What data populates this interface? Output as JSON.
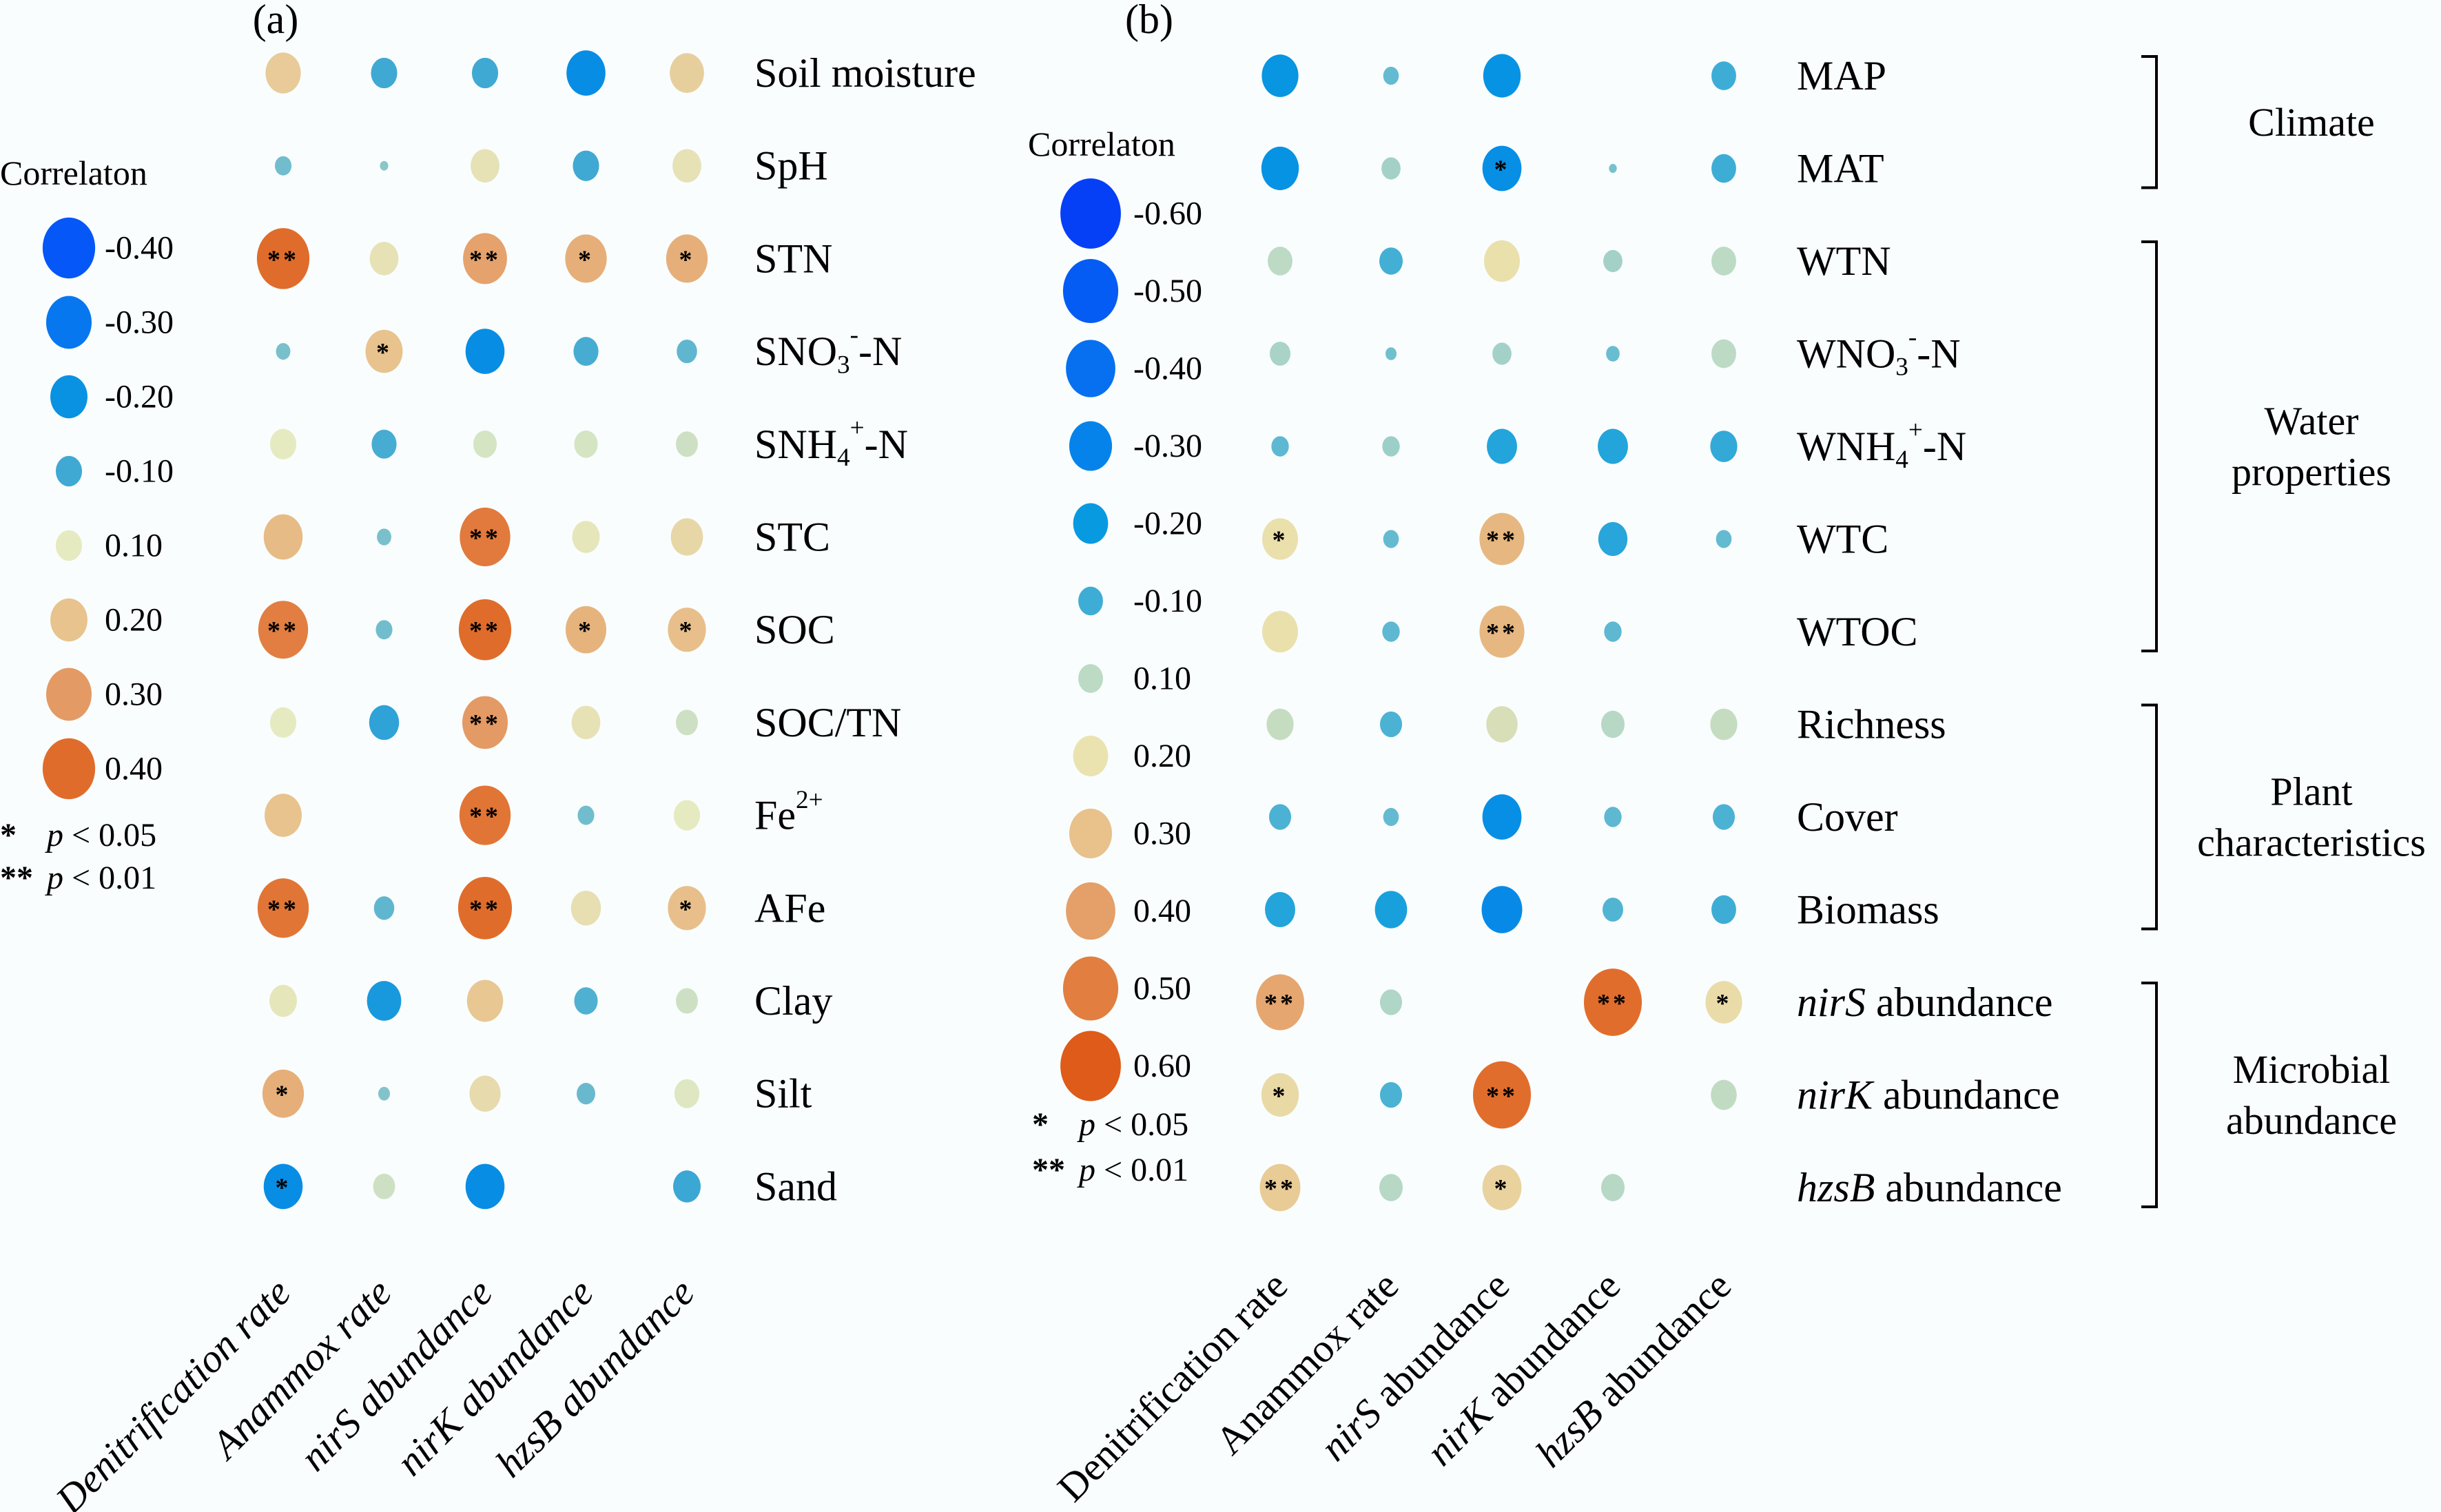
{
  "chart_data": [
    {
      "type": "bubble-correlation-matrix",
      "panel_label": "(a)",
      "legend": {
        "title": "Correlaton",
        "entries": [
          "-0.40",
          "-0.30",
          "-0.20",
          "-0.10",
          "0.10",
          "0.20",
          "0.30",
          "0.40"
        ],
        "values": [
          -0.4,
          -0.3,
          -0.2,
          -0.1,
          0.1,
          0.2,
          0.3,
          0.4
        ],
        "colors": [
          "#0557f7",
          "#0677ef",
          "#0992e1",
          "#3fa9d3",
          "#e6eac0",
          "#e8c38e",
          "#e49a64",
          "#e06c2b"
        ],
        "significance": [
          {
            "mark": "*",
            "p_symbol": "p",
            "text": "< 0.05"
          },
          {
            "mark": "**",
            "p_symbol": "p",
            "text": "< 0.01"
          }
        ]
      },
      "max_abs": 0.42,
      "columns": [
        {
          "label": "Denitrification rate",
          "italic_part": "",
          "rest": "Denitrification rate"
        },
        {
          "label": "Anammox rate",
          "italic_part": "",
          "rest": "Anammox rate"
        },
        {
          "label": "nirS abundance",
          "italic_part": "",
          "rest": "nirS abundance"
        },
        {
          "label": "nirK abundance",
          "italic_part": "",
          "rest": "nirK abundance"
        },
        {
          "label": "hzsB abundance",
          "italic_part": "",
          "rest": "hzsB abundance"
        }
      ],
      "columns_all_italic": true,
      "rows": [
        {
          "label": "Soil moisture",
          "values": [
            0.18,
            -0.1,
            -0.1,
            -0.22,
            0.17
          ],
          "sig": [
            "",
            "",
            "",
            "",
            ""
          ]
        },
        {
          "label": "SpH",
          "values": [
            -0.04,
            -0.01,
            0.12,
            -0.1,
            0.12
          ],
          "sig": [
            "",
            "",
            "",
            "",
            ""
          ]
        },
        {
          "label": "STN",
          "values": [
            0.4,
            0.12,
            0.28,
            0.25,
            0.25
          ],
          "sig": [
            "**",
            "",
            "**",
            "*",
            "*"
          ]
        },
        {
          "label": "SNO",
          "sub": "3",
          "sup": "-",
          "suffix": "-N",
          "values": [
            -0.03,
            0.2,
            -0.22,
            -0.09,
            -0.06
          ],
          "sig": [
            "",
            "*",
            "",
            "",
            ""
          ]
        },
        {
          "label": "SNH",
          "sub": "4",
          "sup": "+",
          "suffix": "-N",
          "values": [
            0.1,
            -0.09,
            0.08,
            0.08,
            0.07
          ],
          "sig": [
            "",
            "",
            "",
            "",
            ""
          ]
        },
        {
          "label": "STC",
          "values": [
            0.22,
            -0.03,
            0.37,
            0.11,
            0.15
          ],
          "sig": [
            "",
            "",
            "**",
            "",
            ""
          ]
        },
        {
          "label": "SOC",
          "values": [
            0.36,
            -0.04,
            0.4,
            0.24,
            0.21
          ],
          "sig": [
            "**",
            "",
            "**",
            "*",
            "*"
          ]
        },
        {
          "label": "SOC/TN",
          "values": [
            0.1,
            -0.13,
            0.3,
            0.12,
            0.07
          ],
          "sig": [
            "",
            "",
            "**",
            "",
            ""
          ]
        },
        {
          "label": "Fe",
          "sup": "2+",
          "values": [
            0.2,
            null,
            0.38,
            -0.04,
            0.1
          ],
          "sig": [
            "",
            "",
            "**",
            "",
            ""
          ]
        },
        {
          "label": "AFe",
          "values": [
            0.38,
            -0.06,
            0.42,
            0.13,
            0.21
          ],
          "sig": [
            "**",
            "",
            "**",
            "",
            "*"
          ]
        },
        {
          "label": "Clay",
          "values": [
            0.11,
            -0.17,
            0.19,
            -0.08,
            0.07
          ],
          "sig": [
            "",
            "",
            "",
            "",
            ""
          ]
        },
        {
          "label": "Silt",
          "values": [
            0.25,
            -0.02,
            0.14,
            -0.05,
            0.09
          ],
          "sig": [
            "*",
            "",
            "",
            "",
            ""
          ]
        },
        {
          "label": "Sand",
          "values": [
            -0.22,
            0.07,
            -0.22,
            null,
            -0.11
          ],
          "sig": [
            "*",
            "",
            "",
            "",
            ""
          ]
        }
      ]
    },
    {
      "type": "bubble-correlation-matrix",
      "panel_label": "(b)",
      "legend": {
        "title": "Correlaton",
        "entries": [
          "-0.60",
          "-0.50",
          "-0.40",
          "-0.30",
          "-0.20",
          "-0.10",
          "0.10",
          "0.20",
          "0.30",
          "0.40",
          "0.50",
          "0.60"
        ],
        "values": [
          -0.6,
          -0.5,
          -0.4,
          -0.3,
          -0.2,
          -0.1,
          0.1,
          0.2,
          0.3,
          0.4,
          0.5,
          0.6
        ],
        "colors": [
          "#0540f7",
          "#055cf5",
          "#0670f0",
          "#0683ea",
          "#089ae0",
          "#3eadd6",
          "#bcdac4",
          "#eae3b0",
          "#e8c18b",
          "#e59f68",
          "#e27f40",
          "#df5b19"
        ],
        "significance": [
          {
            "mark": "*",
            "p_symbol": "p",
            "text": "< 0.05"
          },
          {
            "mark": "**",
            "p_symbol": "p",
            "text": "< 0.01"
          }
        ]
      },
      "max_abs": 0.62,
      "columns": [
        {
          "italic_part": "",
          "rest": "Denitrification rate"
        },
        {
          "italic_part": "",
          "rest": "Anammox rate"
        },
        {
          "italic_part": "nirS",
          "rest": " abundance"
        },
        {
          "italic_part": "nirK",
          "rest": " abundance"
        },
        {
          "italic_part": "hzsB",
          "rest": " abundance"
        }
      ],
      "columns_all_italic": false,
      "rows": [
        {
          "label": "MAP",
          "values": [
            -0.22,
            -0.04,
            -0.23,
            null,
            -0.1
          ],
          "sig": [
            "",
            "",
            "",
            "",
            ""
          ]
        },
        {
          "label": "MAT",
          "values": [
            -0.23,
            0.06,
            -0.25,
            -0.01,
            -0.1
          ],
          "sig": [
            "",
            "",
            "*",
            "",
            ""
          ]
        },
        {
          "label": "WTN",
          "values": [
            0.1,
            -0.09,
            0.21,
            0.06,
            0.1
          ],
          "sig": [
            "",
            "",
            "",
            "",
            ""
          ]
        },
        {
          "label": "WNO",
          "sub": "3",
          "sup": "-",
          "suffix": "-N",
          "values": [
            0.07,
            -0.02,
            0.06,
            -0.03,
            0.1
          ],
          "sig": [
            "",
            "",
            "",
            "",
            ""
          ]
        },
        {
          "label": "WNH",
          "sub": "4",
          "sup": "+",
          "suffix": "-N",
          "values": [
            -0.05,
            0.05,
            -0.15,
            -0.15,
            -0.12
          ],
          "sig": [
            "",
            "",
            "",
            "",
            ""
          ]
        },
        {
          "label": "WTC",
          "values": [
            0.21,
            -0.04,
            0.33,
            -0.14,
            -0.04
          ],
          "sig": [
            "*",
            "",
            "**",
            "",
            ""
          ]
        },
        {
          "label": "WTOC",
          "values": [
            0.21,
            -0.05,
            0.33,
            -0.05,
            null
          ],
          "sig": [
            "",
            "",
            "**",
            "",
            ""
          ]
        },
        {
          "label": "Richness",
          "values": [
            0.12,
            -0.08,
            0.16,
            0.09,
            0.12
          ],
          "sig": [
            "",
            "",
            "",
            "",
            ""
          ]
        },
        {
          "label": "Cover",
          "values": [
            -0.08,
            -0.04,
            -0.25,
            -0.05,
            -0.08
          ],
          "sig": [
            "",
            "",
            "",
            "",
            ""
          ]
        },
        {
          "label": "Biomass",
          "values": [
            -0.15,
            -0.17,
            -0.27,
            -0.07,
            -0.1
          ],
          "sig": [
            "",
            "",
            "",
            "",
            ""
          ]
        },
        {
          "label": "",
          "italic_part": "nirS",
          "rest": " abundance",
          "values": [
            0.38,
            0.08,
            null,
            0.55,
            0.22
          ],
          "sig": [
            "**",
            "",
            "",
            "**",
            "*"
          ]
        },
        {
          "label": "",
          "italic_part": "nirK",
          "rest": " abundance",
          "values": [
            0.23,
            -0.08,
            0.55,
            null,
            0.11
          ],
          "sig": [
            "*",
            "",
            "**",
            "",
            ""
          ]
        },
        {
          "label": "",
          "italic_part": "hzsB",
          "rest": " abundance",
          "values": [
            0.27,
            0.09,
            0.25,
            0.09,
            null
          ],
          "sig": [
            "**",
            "",
            "*",
            "",
            ""
          ]
        }
      ],
      "groups": [
        {
          "label_lines": [
            "Climate"
          ],
          "rows": [
            0,
            1
          ]
        },
        {
          "label_lines": [
            "Water",
            "properties"
          ],
          "rows": [
            2,
            6
          ]
        },
        {
          "label_lines": [
            "Plant",
            "characteristics"
          ],
          "rows": [
            7,
            9
          ]
        },
        {
          "label_lines": [
            "Microbial",
            "abundance"
          ],
          "rows": [
            10,
            12
          ]
        }
      ]
    }
  ]
}
